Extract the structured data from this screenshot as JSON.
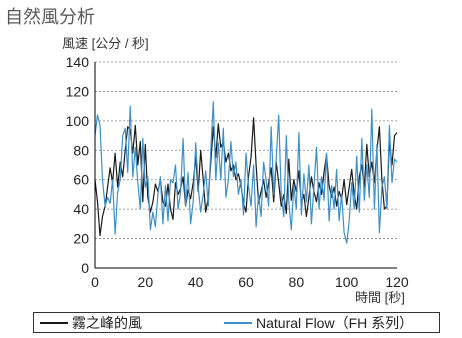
{
  "chart_data": {
    "type": "line",
    "title": "自然風分析",
    "ylabel": "風速 [公分 / 秒]",
    "xlabel": "時間 [秒]",
    "xlim": [
      0,
      120
    ],
    "ylim": [
      0,
      140
    ],
    "xticks": [
      0,
      20,
      40,
      60,
      80,
      100,
      120
    ],
    "yticks": [
      0,
      20,
      40,
      60,
      80,
      100,
      120,
      140
    ],
    "grid": true,
    "legend_position": "bottom",
    "x": [
      0,
      1,
      2,
      3,
      4,
      5,
      6,
      7,
      8,
      9,
      10,
      11,
      12,
      13,
      14,
      15,
      16,
      17,
      18,
      19,
      20,
      21,
      22,
      23,
      24,
      25,
      26,
      27,
      28,
      29,
      30,
      31,
      32,
      33,
      34,
      35,
      36,
      37,
      38,
      39,
      40,
      41,
      42,
      43,
      44,
      45,
      46,
      47,
      48,
      49,
      50,
      51,
      52,
      53,
      54,
      55,
      56,
      57,
      58,
      59,
      60,
      61,
      62,
      63,
      64,
      65,
      66,
      67,
      68,
      69,
      70,
      71,
      72,
      73,
      74,
      75,
      76,
      77,
      78,
      79,
      80,
      81,
      82,
      83,
      84,
      85,
      86,
      87,
      88,
      89,
      90,
      91,
      92,
      93,
      94,
      95,
      96,
      97,
      98,
      99,
      100,
      101,
      102,
      103,
      104,
      105,
      106,
      107,
      108,
      109,
      110,
      111,
      112,
      113,
      114,
      115,
      116,
      117,
      118,
      119,
      120
    ],
    "series": [
      {
        "name": "霧之峰的風",
        "color": "#1a1a1a",
        "values": [
          60,
          45,
          22,
          35,
          42,
          55,
          68,
          58,
          78,
          55,
          72,
          62,
          80,
          96,
          94,
          78,
          97,
          70,
          86,
          45,
          84,
          48,
          38,
          45,
          57,
          52,
          60,
          45,
          42,
          57,
          40,
          33,
          58,
          50,
          54,
          62,
          42,
          53,
          47,
          58,
          75,
          52,
          80,
          60,
          38,
          48,
          72,
          96,
          75,
          98,
          82,
          86,
          72,
          78,
          66,
          70,
          60,
          64,
          56,
          44,
          38,
          62,
          75,
          102,
          70,
          44,
          52,
          60,
          48,
          58,
          68,
          45,
          72,
          58,
          42,
          50,
          37,
          74,
          46,
          60,
          52,
          66,
          44,
          50,
          35,
          48,
          62,
          52,
          45,
          58,
          50,
          65,
          77,
          56,
          48,
          55,
          42,
          52,
          47,
          60,
          43,
          55,
          67,
          50,
          40,
          62,
          70,
          55,
          84,
          62,
          72,
          58,
          80,
          96,
          60,
          40,
          42,
          86,
          70,
          90,
          92
        ]
      },
      {
        "name": "Natural Flow（FH 系列）",
        "color": "#3f8fc8",
        "values": [
          90,
          104,
          97,
          60,
          42,
          48,
          44,
          60,
          23,
          52,
          60,
          90,
          95,
          65,
          110,
          62,
          82,
          58,
          40,
          88,
          55,
          62,
          26,
          38,
          28,
          50,
          62,
          30,
          56,
          32,
          60,
          58,
          70,
          40,
          52,
          88,
          42,
          65,
          30,
          45,
          85,
          55,
          38,
          50,
          66,
          42,
          80,
          113,
          60,
          85,
          60,
          95,
          48,
          60,
          86,
          62,
          72,
          50,
          60,
          36,
          78,
          56,
          42,
          70,
          28,
          50,
          35,
          72,
          60,
          42,
          96,
          50,
          74,
          104,
          50,
          35,
          90,
          45,
          26,
          56,
          40,
          92,
          36,
          64,
          45,
          70,
          30,
          55,
          82,
          40,
          62,
          46,
          78,
          32,
          56,
          40,
          67,
          32,
          50,
          24,
          17,
          32,
          58,
          40,
          76,
          38,
          88,
          46,
          70,
          48,
          108,
          40,
          84,
          24,
          55,
          62,
          40,
          97,
          58,
          74,
          72
        ]
      }
    ]
  }
}
